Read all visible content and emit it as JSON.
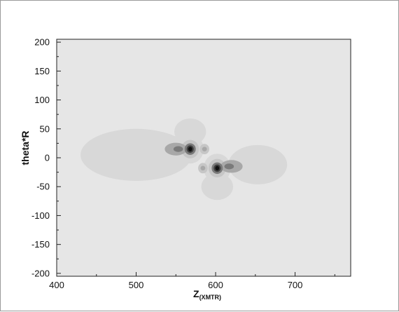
{
  "chart_data": {
    "type": "contour",
    "title": "",
    "xlabel": "Z",
    "xlabel_subscript": "(XMTR)",
    "ylabel": "theta*R",
    "xlim": [
      400,
      770
    ],
    "ylim": [
      -205,
      205
    ],
    "xticks": [
      400,
      500,
      600,
      700
    ],
    "yticks": [
      200,
      150,
      100,
      50,
      0,
      -50,
      -100,
      -150,
      -200
    ],
    "colors": {
      "background": "#e6e6e6",
      "level1": "#d8d8d8",
      "level2": "#c6c6c6",
      "level3": "#a8a8a8",
      "level4": "#7a7a7a",
      "level5": "#404040",
      "level6": "#101010"
    },
    "contours": [
      {
        "name": "left-lobe-outer",
        "cx": 500,
        "cy": 5,
        "rx": 70,
        "ry": 45,
        "level": "level1"
      },
      {
        "name": "right-lobe-outer",
        "cx": 653,
        "cy": -12,
        "rx": 37,
        "ry": 34,
        "level": "level1"
      },
      {
        "name": "top-lobe-outer",
        "cx": 568,
        "cy": 45,
        "rx": 20,
        "ry": 23,
        "level": "level1"
      },
      {
        "name": "bottom-lobe-outer",
        "cx": 602,
        "cy": -50,
        "rx": 20,
        "ry": 23,
        "level": "level1"
      },
      {
        "name": "upper-core-halo",
        "cx": 568,
        "cy": 15,
        "rx": 17,
        "ry": 25,
        "level": "level1"
      },
      {
        "name": "lower-core-halo",
        "cx": 602,
        "cy": -18,
        "rx": 17,
        "ry": 25,
        "level": "level1"
      },
      {
        "name": "upper-core-mid",
        "cx": 568,
        "cy": 15,
        "rx": 11,
        "ry": 16,
        "level": "level2"
      },
      {
        "name": "lower-core-mid",
        "cx": 602,
        "cy": -18,
        "rx": 11,
        "ry": 16,
        "level": "level2"
      },
      {
        "name": "upper-left-side",
        "cx": 550,
        "cy": 15,
        "rx": 14,
        "ry": 11,
        "level": "level3"
      },
      {
        "name": "upper-left-side-inner",
        "cx": 553,
        "cy": 15,
        "rx": 6,
        "ry": 5,
        "level": "level4"
      },
      {
        "name": "upper-right-side",
        "cx": 586,
        "cy": 15,
        "rx": 6,
        "ry": 9,
        "level": "level2"
      },
      {
        "name": "upper-right-side-inner",
        "cx": 586,
        "cy": 15,
        "rx": 3,
        "ry": 4,
        "level": "level3"
      },
      {
        "name": "lower-left-side",
        "cx": 584,
        "cy": -18,
        "rx": 6,
        "ry": 9,
        "level": "level2"
      },
      {
        "name": "lower-left-side-inner",
        "cx": 584,
        "cy": -18,
        "rx": 3,
        "ry": 4,
        "level": "level3"
      },
      {
        "name": "lower-right-side",
        "cx": 620,
        "cy": -15,
        "rx": 14,
        "ry": 11,
        "level": "level3"
      },
      {
        "name": "lower-right-side-inner",
        "cx": 617,
        "cy": -15,
        "rx": 6,
        "ry": 5,
        "level": "level4"
      },
      {
        "name": "upper-core-inner",
        "cx": 568,
        "cy": 15,
        "rx": 7,
        "ry": 10,
        "level": "level4"
      },
      {
        "name": "lower-core-inner",
        "cx": 602,
        "cy": -18,
        "rx": 7,
        "ry": 10,
        "level": "level4"
      },
      {
        "name": "upper-core",
        "cx": 568,
        "cy": 15,
        "rx": 4.5,
        "ry": 6.5,
        "level": "level5"
      },
      {
        "name": "lower-core",
        "cx": 602,
        "cy": -18,
        "rx": 4.5,
        "ry": 6.5,
        "level": "level5"
      },
      {
        "name": "upper-core-peak",
        "cx": 568,
        "cy": 15,
        "rx": 2.5,
        "ry": 4,
        "level": "level6"
      },
      {
        "name": "lower-core-peak",
        "cx": 602,
        "cy": -18,
        "rx": 2.5,
        "ry": 4,
        "level": "level6"
      }
    ]
  }
}
